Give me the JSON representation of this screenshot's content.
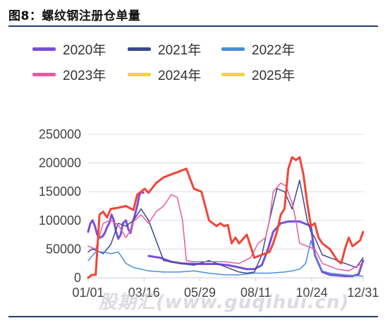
{
  "figure": {
    "title": "图8：螺纹钢注册仓单量"
  },
  "watermark": "股期汇(www.guqihui.cn)",
  "chart_data": {
    "type": "line",
    "title": "",
    "xlabel": "",
    "ylabel": "",
    "ylim": [
      0,
      250000
    ],
    "yticks": [
      0,
      50000,
      100000,
      150000,
      200000,
      250000
    ],
    "xlim": [
      0,
      365
    ],
    "xticks": [
      {
        "x": 0,
        "label": "01/01"
      },
      {
        "x": 74,
        "label": "03/16"
      },
      {
        "x": 148,
        "label": "05/29"
      },
      {
        "x": 222,
        "label": "08/11"
      },
      {
        "x": 296,
        "label": "10/24"
      },
      {
        "x": 364,
        "label": "12/31"
      }
    ],
    "grid": true,
    "legend_position": "top",
    "series": [
      {
        "name": "2020年",
        "color": "#7b4fd9",
        "width": 3,
        "x": [
          0,
          3,
          6,
          9,
          12,
          16,
          19,
          22,
          25,
          28,
          31,
          34,
          37,
          40,
          43,
          46,
          50,
          53,
          56,
          59,
          62,
          65,
          68,
          71,
          73
        ],
        "y": [
          80000,
          95000,
          100000,
          90000,
          75000,
          70000,
          72000,
          78000,
          88000,
          95000,
          110000,
          100000,
          80000,
          68000,
          75000,
          95000,
          100000,
          85000,
          78000,
          96000,
          110000,
          125000,
          145000,
          150000,
          148000
        ]
      },
      {
        "name": "2020年",
        "color": "#7b4fd9",
        "width": 3,
        "x": [
          80,
          95,
          110,
          125,
          150,
          170,
          185,
          200,
          210,
          220,
          230,
          238,
          245,
          255,
          265,
          280,
          295,
          300,
          310,
          320,
          340,
          350,
          358,
          364
        ],
        "y": [
          38000,
          35000,
          28000,
          25000,
          24000,
          24000,
          22000,
          18000,
          15000,
          15000,
          22000,
          50000,
          80000,
          95000,
          98000,
          98000,
          90000,
          40000,
          10000,
          5000,
          3000,
          3000,
          6000,
          30000
        ]
      },
      {
        "name": "2021年",
        "color": "#3d4a8f",
        "width": 1.5,
        "x": [
          0,
          5,
          10,
          20,
          30,
          40,
          50,
          60,
          70,
          80,
          100,
          120,
          140,
          160,
          180,
          200,
          210,
          220,
          230,
          240,
          250,
          260,
          270,
          280,
          290,
          295,
          300,
          305,
          310,
          320,
          340,
          355,
          364
        ],
        "y": [
          45000,
          50000,
          48000,
          42000,
          58000,
          95000,
          90000,
          100000,
          120000,
          100000,
          30000,
          25000,
          22000,
          30000,
          20000,
          10000,
          8000,
          10000,
          40000,
          100000,
          155000,
          150000,
          120000,
          170000,
          100000,
          80000,
          70000,
          55000,
          40000,
          35000,
          25000,
          18000,
          35000
        ]
      },
      {
        "name": "2022年",
        "color": "#4a8fd6",
        "width": 1.5,
        "x": [
          0,
          10,
          20,
          30,
          40,
          45,
          50,
          60,
          70,
          80,
          100,
          120,
          140,
          160,
          180,
          200,
          220,
          240,
          260,
          270,
          280,
          288,
          295,
          300,
          310,
          320,
          340,
          364
        ],
        "y": [
          30000,
          45000,
          45000,
          42000,
          45000,
          35000,
          25000,
          18000,
          15000,
          12000,
          10000,
          10000,
          12000,
          8000,
          5000,
          5000,
          8000,
          8000,
          10000,
          12000,
          15000,
          25000,
          65000,
          40000,
          12000,
          8000,
          5000,
          3000
        ]
      },
      {
        "name": "2023年",
        "color": "#e85aa0",
        "width": 1.5,
        "x": [
          0,
          10,
          20,
          30,
          40,
          50,
          55,
          60,
          70,
          80,
          90,
          100,
          110,
          118,
          125,
          130,
          140,
          160,
          180,
          200,
          215,
          225,
          235,
          240,
          245,
          255,
          262,
          270,
          275,
          280,
          290,
          300,
          310,
          320,
          330,
          345,
          355,
          364
        ],
        "y": [
          55000,
          50000,
          95000,
          100000,
          92000,
          70000,
          80000,
          98000,
          110000,
          95000,
          115000,
          125000,
          145000,
          140000,
          100000,
          30000,
          28000,
          28000,
          28000,
          25000,
          35000,
          60000,
          70000,
          100000,
          150000,
          165000,
          160000,
          130000,
          100000,
          60000,
          55000,
          50000,
          25000,
          20000,
          15000,
          12000,
          20000,
          25000
        ]
      },
      {
        "name": "2024年",
        "color": "#f44336",
        "width": 3,
        "x": [
          0,
          5,
          10,
          15,
          20,
          25,
          30,
          40,
          50,
          60,
          65,
          70,
          75,
          80,
          90,
          100,
          110,
          120,
          130,
          140,
          150,
          160,
          165,
          170,
          175,
          180,
          185,
          190,
          195,
          200,
          210,
          220,
          230,
          240,
          245,
          250,
          255,
          260,
          265,
          270,
          275,
          280,
          285,
          290,
          295,
          300,
          305,
          310,
          315,
          320,
          325,
          330,
          335,
          340,
          345,
          350,
          355,
          360,
          364
        ],
        "y": [
          0,
          5000,
          5000,
          110000,
          115000,
          105000,
          120000,
          122000,
          125000,
          118000,
          145000,
          150000,
          155000,
          148000,
          165000,
          175000,
          180000,
          185000,
          190000,
          155000,
          150000,
          100000,
          95000,
          90000,
          95000,
          90000,
          92000,
          60000,
          70000,
          60000,
          75000,
          35000,
          40000,
          45000,
          60000,
          80000,
          110000,
          120000,
          190000,
          210000,
          205000,
          210000,
          180000,
          130000,
          90000,
          95000,
          70000,
          60000,
          55000,
          50000,
          40000,
          30000,
          25000,
          50000,
          70000,
          55000,
          60000,
          65000,
          80000
        ]
      },
      {
        "name": "2025年",
        "color": "#f3d43b",
        "width": 3,
        "x": [],
        "y": []
      }
    ],
    "legend": [
      "2020年",
      "2021年",
      "2022年",
      "2023年",
      "2024年",
      "2025年"
    ]
  }
}
